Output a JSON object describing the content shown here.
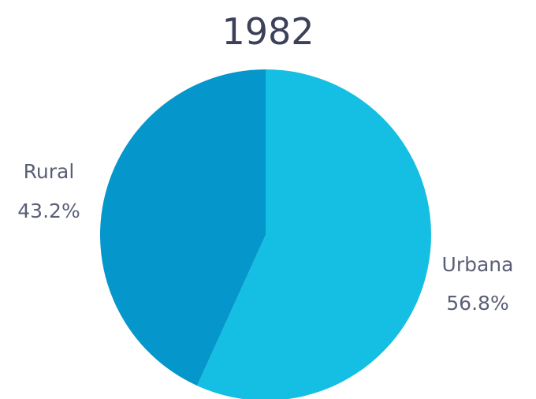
{
  "chart_data": {
    "type": "pie",
    "title": "1982",
    "slices": [
      {
        "label": "Urbana",
        "value": 56.8,
        "value_label": "56.8%",
        "color": "#14bfe3"
      },
      {
        "label": "Rural",
        "value": 43.2,
        "value_label": "43.2%",
        "color": "#0596cb"
      }
    ],
    "start_angle": "12 o'clock",
    "direction": "clockwise"
  }
}
